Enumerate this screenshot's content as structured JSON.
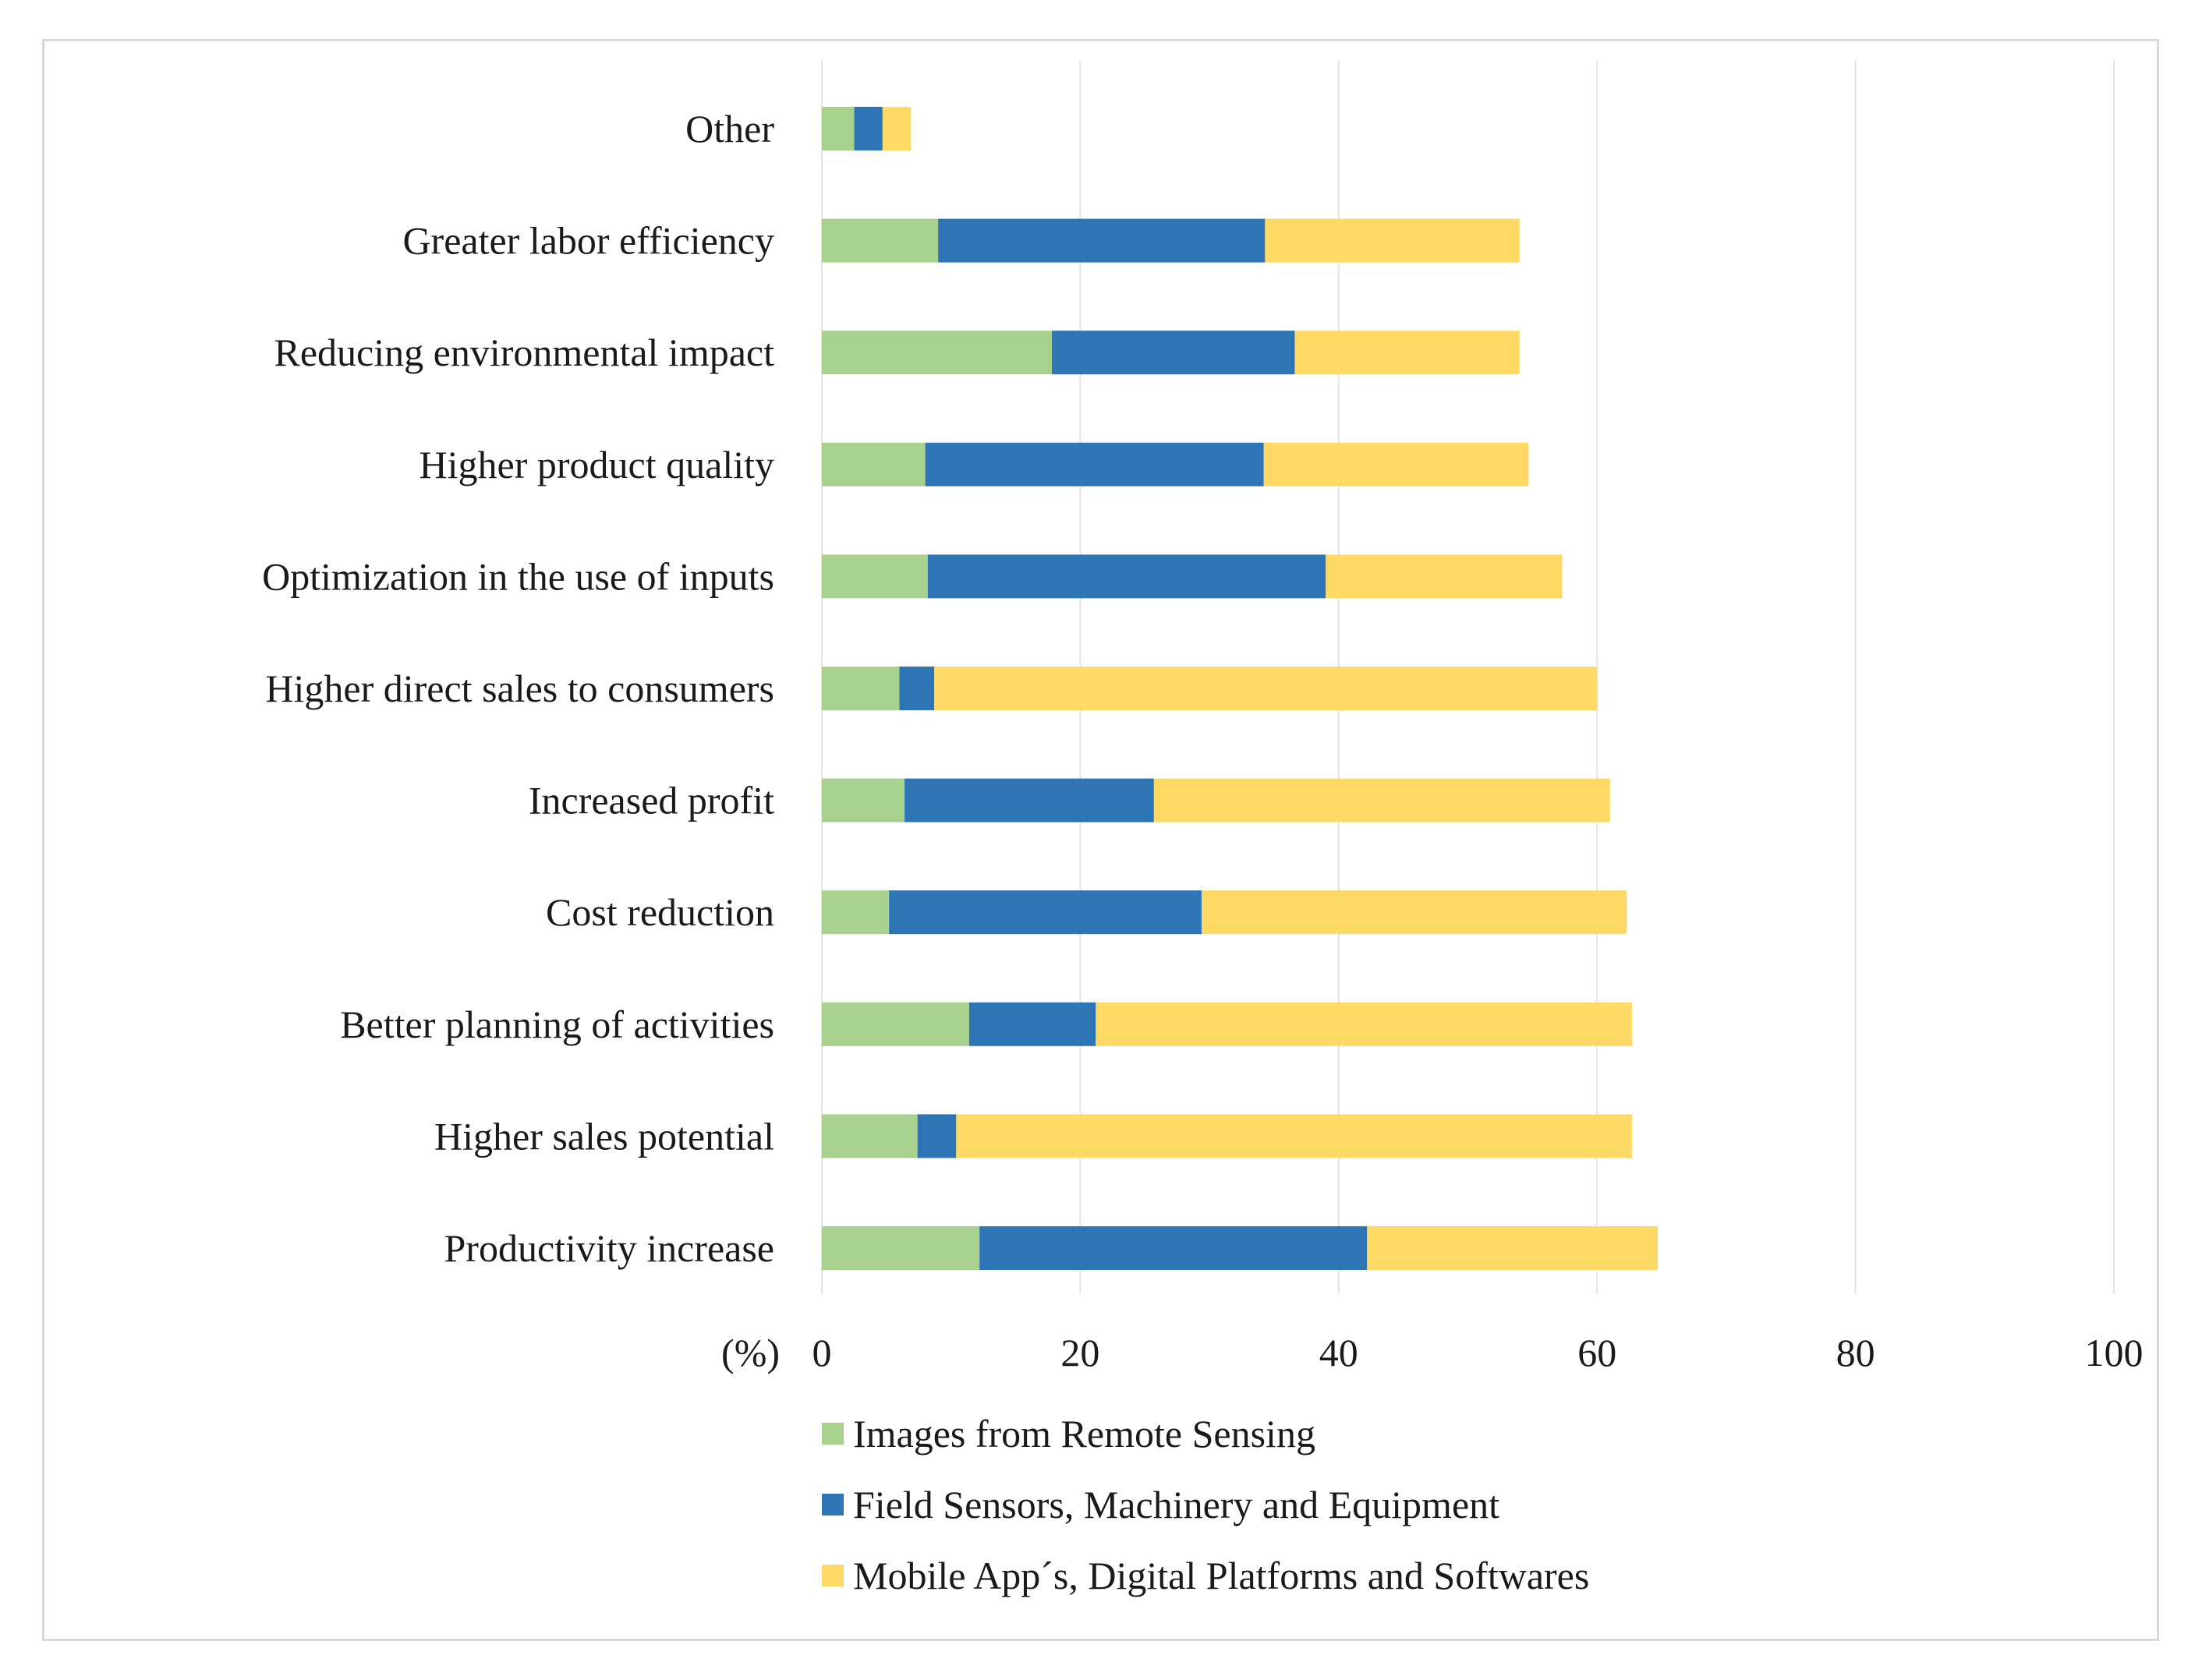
{
  "chart_data": {
    "type": "bar",
    "orientation": "horizontal",
    "stacked": true,
    "title": "",
    "xlabel": "(%)",
    "ylabel": "",
    "xlim": [
      0,
      100
    ],
    "xticks": [
      0,
      20,
      40,
      60,
      80,
      100
    ],
    "grid": true,
    "legend_position": "bottom",
    "categories": [
      "Productivity increase",
      "Higher sales potential",
      "Better planning of activities",
      "Cost reduction",
      "Increased profit",
      "Higher direct sales to consumers",
      "Optimization in the use of inputs",
      "Higher product quality",
      "Reducing environmental impact",
      "Greater labor efficiency",
      "Other"
    ],
    "series": [
      {
        "name": "Images from Remote Sensing",
        "color": "#a9d18e",
        "values": [
          12.2,
          7.4,
          11.4,
          5.2,
          6.4,
          6.0,
          8.2,
          8.0,
          17.8,
          9.0,
          2.5
        ]
      },
      {
        "name": "Field Sensors, Machinery and Equipment",
        "color": "#2e75b6",
        "values": [
          30.0,
          3.0,
          9.8,
          24.2,
          19.3,
          2.7,
          30.8,
          26.2,
          18.8,
          25.3,
          2.2
        ]
      },
      {
        "name": "Mobile App´s, Digital Platforms and Softwares",
        "color": "#ffd966",
        "values": [
          22.5,
          52.3,
          41.5,
          32.9,
          35.3,
          51.3,
          18.3,
          20.5,
          17.4,
          19.7,
          2.2
        ]
      }
    ]
  }
}
